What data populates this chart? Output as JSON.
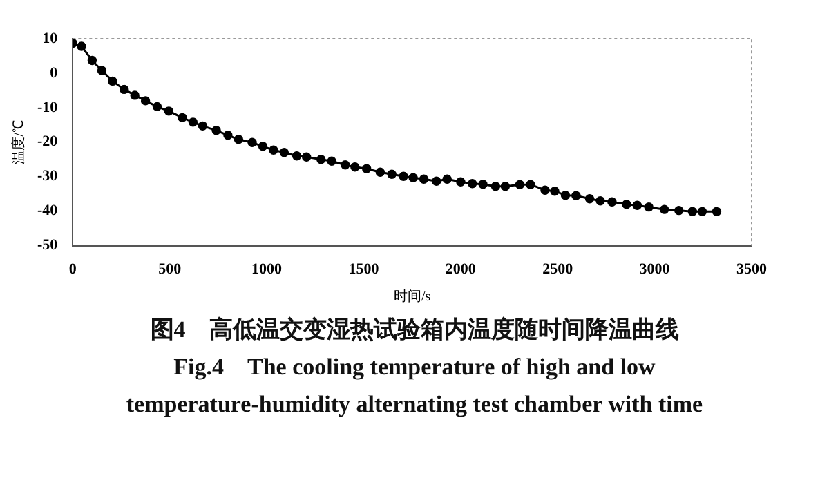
{
  "chart_data": {
    "type": "line",
    "xlabel": "时间/s",
    "ylabel": "温度/℃",
    "x": [
      0,
      45,
      100,
      150,
      205,
      265,
      320,
      375,
      435,
      495,
      565,
      620,
      670,
      740,
      800,
      855,
      925,
      980,
      1035,
      1090,
      1155,
      1205,
      1280,
      1335,
      1405,
      1455,
      1515,
      1585,
      1645,
      1705,
      1755,
      1810,
      1875,
      1930,
      2000,
      2060,
      2115,
      2180,
      2230,
      2305,
      2360,
      2435,
      2485,
      2540,
      2595,
      2665,
      2720,
      2780,
      2855,
      2910,
      2970,
      3050,
      3125,
      3195,
      3245,
      3320
    ],
    "values": [
      8.7,
      7.8,
      3.7,
      0.8,
      -2.3,
      -4.7,
      -6.4,
      -8.0,
      -9.7,
      -11.0,
      -12.9,
      -14.2,
      -15.3,
      -16.6,
      -18.0,
      -19.2,
      -20.1,
      -21.2,
      -22.3,
      -23.0,
      -24.0,
      -24.3,
      -25.0,
      -25.5,
      -26.6,
      -27.2,
      -27.7,
      -28.7,
      -29.3,
      -29.9,
      -30.3,
      -30.7,
      -31.3,
      -30.7,
      -31.5,
      -32.0,
      -32.2,
      -32.8,
      -32.8,
      -32.3,
      -32.3,
      -33.9,
      -34.2,
      -35.4,
      -35.5,
      -36.4,
      -37.0,
      -37.3,
      -38.0,
      -38.3,
      -38.8,
      -39.5,
      -39.8,
      -40.1,
      -40.1,
      -40.1
    ],
    "color": "#000000",
    "marker": "circle",
    "line_style": "solid",
    "grid": false,
    "legend": false,
    "xlim": [
      0,
      3500
    ],
    "xticks": [
      0,
      500,
      1000,
      1500,
      2000,
      2500,
      3000,
      3500
    ],
    "ylim": [
      -50,
      10
    ],
    "yticks": [
      -50,
      -40,
      -30,
      -20,
      -10,
      0,
      10
    ],
    "annotations": [
      "图4　高低温交变湿热试验箱内温度随时间降温曲线",
      "Fig.4　The cooling temperature of high and low",
      "temperature-humidity alternating test chamber with time"
    ]
  }
}
